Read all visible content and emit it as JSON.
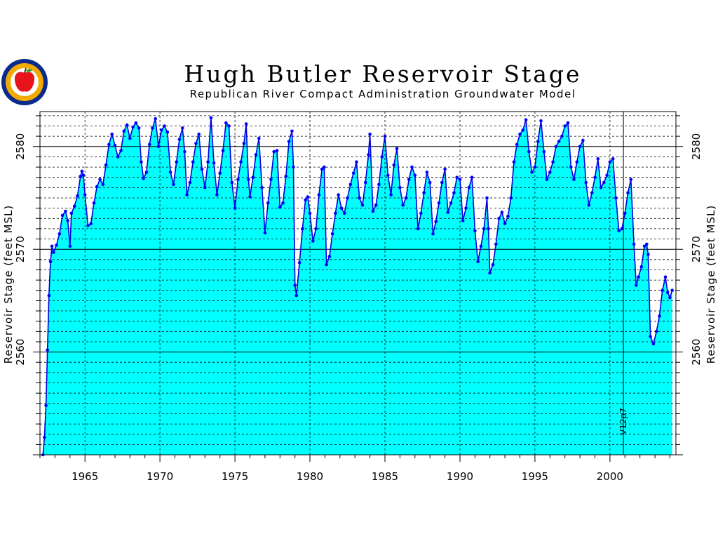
{
  "colors": {
    "fill": "#00ffff",
    "line": "#0000e0",
    "marker": "#0000ff",
    "grid": "#000000",
    "logo_ring": "#0a2a8c",
    "logo_inner": "#f2a900",
    "apple": "#e8141b"
  },
  "logo": {
    "icon": "nebraska-seal-apple-logo"
  },
  "chart_data": {
    "type": "area",
    "title": "Hugh Butler Reservoir Stage",
    "subtitle": "Republican River Compact Administration Groundwater Model",
    "ylabel": "Reservoir Stage (feet MSL)",
    "xlabel": "",
    "xlim": [
      1962.0,
      2004.4
    ],
    "ylim": [
      2550.0,
      2583.4
    ],
    "x_ticks": [
      1965,
      1970,
      1975,
      1980,
      1985,
      1990,
      1995,
      2000
    ],
    "x_tick_labels": [
      "1965",
      "1970",
      "1975",
      "1980",
      "1985",
      "1990",
      "1995",
      "2000"
    ],
    "y_ticks": [
      2560,
      2570,
      2580
    ],
    "y_tick_labels": [
      "2560",
      "2570",
      "2580"
    ],
    "grid": "dashed",
    "annotation": {
      "text": "V12p7",
      "x": 2000.9
    },
    "series": [
      {
        "points": [
          [
            1962.2,
            2550.0
          ],
          [
            1962.3,
            2551.7
          ],
          [
            1962.4,
            2554.8
          ],
          [
            1962.5,
            2560.2
          ],
          [
            1962.6,
            2565.5
          ],
          [
            1962.7,
            2568.8
          ],
          [
            1962.8,
            2570.3
          ],
          [
            1962.9,
            2569.7
          ],
          [
            1963.1,
            2570.4
          ],
          [
            1963.3,
            2571.5
          ],
          [
            1963.5,
            2573.3
          ],
          [
            1963.7,
            2573.7
          ],
          [
            1963.85,
            2572.8
          ],
          [
            1964.0,
            2570.3
          ],
          [
            1964.1,
            2573.5
          ],
          [
            1964.3,
            2574.2
          ],
          [
            1964.5,
            2575.2
          ],
          [
            1964.7,
            2577.1
          ],
          [
            1964.8,
            2577.6
          ],
          [
            1964.9,
            2577.2
          ],
          [
            1965.0,
            2575.3
          ],
          [
            1965.2,
            2572.3
          ],
          [
            1965.4,
            2572.5
          ],
          [
            1965.6,
            2574.5
          ],
          [
            1965.8,
            2576.1
          ],
          [
            1966.0,
            2576.8
          ],
          [
            1966.2,
            2576.3
          ],
          [
            1966.4,
            2578.2
          ],
          [
            1966.6,
            2580.2
          ],
          [
            1966.8,
            2581.2
          ],
          [
            1967.0,
            2580.1
          ],
          [
            1967.2,
            2579.0
          ],
          [
            1967.4,
            2579.6
          ],
          [
            1967.6,
            2581.5
          ],
          [
            1967.8,
            2582.1
          ],
          [
            1968.0,
            2580.8
          ],
          [
            1968.2,
            2581.9
          ],
          [
            1968.4,
            2582.3
          ],
          [
            1968.6,
            2581.8
          ],
          [
            1968.75,
            2578.5
          ],
          [
            1968.9,
            2576.9
          ],
          [
            1969.1,
            2577.5
          ],
          [
            1969.3,
            2580.2
          ],
          [
            1969.5,
            2581.8
          ],
          [
            1969.7,
            2582.7
          ],
          [
            1969.9,
            2580.0
          ],
          [
            1970.1,
            2581.6
          ],
          [
            1970.3,
            2582.0
          ],
          [
            1970.5,
            2581.4
          ],
          [
            1970.7,
            2577.5
          ],
          [
            1970.9,
            2576.3
          ],
          [
            1971.1,
            2578.5
          ],
          [
            1971.3,
            2580.7
          ],
          [
            1971.5,
            2581.8
          ],
          [
            1971.65,
            2579.5
          ],
          [
            1971.8,
            2575.3
          ],
          [
            1972.0,
            2576.5
          ],
          [
            1972.2,
            2578.5
          ],
          [
            1972.4,
            2580.3
          ],
          [
            1972.6,
            2581.2
          ],
          [
            1972.8,
            2577.8
          ],
          [
            1973.0,
            2576.0
          ],
          [
            1973.2,
            2578.5
          ],
          [
            1973.4,
            2582.8
          ],
          [
            1973.6,
            2578.4
          ],
          [
            1973.8,
            2575.3
          ],
          [
            1974.0,
            2577.4
          ],
          [
            1974.2,
            2579.6
          ],
          [
            1974.4,
            2582.3
          ],
          [
            1974.6,
            2582.0
          ],
          [
            1974.8,
            2576.5
          ],
          [
            1975.0,
            2574.0
          ],
          [
            1975.2,
            2576.8
          ],
          [
            1975.4,
            2578.5
          ],
          [
            1975.6,
            2580.3
          ],
          [
            1975.75,
            2582.2
          ],
          [
            1975.9,
            2576.8
          ],
          [
            1976.0,
            2575.1
          ],
          [
            1976.2,
            2577.0
          ],
          [
            1976.4,
            2579.2
          ],
          [
            1976.6,
            2580.8
          ],
          [
            1976.8,
            2576.0
          ],
          [
            1977.0,
            2571.6
          ],
          [
            1977.2,
            2574.5
          ],
          [
            1977.4,
            2576.8
          ],
          [
            1977.6,
            2579.5
          ],
          [
            1977.8,
            2579.6
          ],
          [
            1978.0,
            2574.1
          ],
          [
            1978.2,
            2574.5
          ],
          [
            1978.4,
            2577.1
          ],
          [
            1978.6,
            2580.5
          ],
          [
            1978.8,
            2581.5
          ],
          [
            1978.9,
            2578.0
          ],
          [
            1979.0,
            2566.5
          ],
          [
            1979.1,
            2565.5
          ],
          [
            1979.3,
            2568.7
          ],
          [
            1979.5,
            2572.0
          ],
          [
            1979.7,
            2574.8
          ],
          [
            1979.85,
            2575.1
          ],
          [
            1980.0,
            2573.5
          ],
          [
            1980.2,
            2570.8
          ],
          [
            1980.4,
            2572.0
          ],
          [
            1980.6,
            2575.3
          ],
          [
            1980.8,
            2577.8
          ],
          [
            1980.95,
            2578.0
          ],
          [
            1981.1,
            2568.5
          ],
          [
            1981.3,
            2569.3
          ],
          [
            1981.5,
            2571.5
          ],
          [
            1981.7,
            2573.5
          ],
          [
            1981.9,
            2575.3
          ],
          [
            1982.1,
            2574.0
          ],
          [
            1982.3,
            2573.5
          ],
          [
            1982.5,
            2575.0
          ],
          [
            1982.7,
            2576.3
          ],
          [
            1982.9,
            2577.4
          ],
          [
            1983.1,
            2578.5
          ],
          [
            1983.3,
            2575.0
          ],
          [
            1983.5,
            2574.3
          ],
          [
            1983.7,
            2576.5
          ],
          [
            1983.9,
            2579.2
          ],
          [
            1984.0,
            2581.2
          ],
          [
            1984.2,
            2573.7
          ],
          [
            1984.4,
            2574.3
          ],
          [
            1984.6,
            2576.3
          ],
          [
            1984.8,
            2579.0
          ],
          [
            1985.0,
            2581.0
          ],
          [
            1985.2,
            2577.2
          ],
          [
            1985.4,
            2575.3
          ],
          [
            1985.6,
            2578.2
          ],
          [
            1985.8,
            2579.8
          ],
          [
            1986.0,
            2576.0
          ],
          [
            1986.2,
            2574.3
          ],
          [
            1986.4,
            2575.0
          ],
          [
            1986.6,
            2576.8
          ],
          [
            1986.8,
            2578.0
          ],
          [
            1987.0,
            2577.2
          ],
          [
            1987.2,
            2572.0
          ],
          [
            1987.4,
            2573.5
          ],
          [
            1987.6,
            2575.5
          ],
          [
            1987.8,
            2577.5
          ],
          [
            1988.0,
            2576.5
          ],
          [
            1988.2,
            2571.5
          ],
          [
            1988.4,
            2572.7
          ],
          [
            1988.6,
            2574.5
          ],
          [
            1988.8,
            2576.5
          ],
          [
            1989.0,
            2577.8
          ],
          [
            1989.2,
            2573.6
          ],
          [
            1989.4,
            2574.5
          ],
          [
            1989.6,
            2575.5
          ],
          [
            1989.8,
            2577.0
          ],
          [
            1990.0,
            2576.8
          ],
          [
            1990.2,
            2572.8
          ],
          [
            1990.4,
            2574.0
          ],
          [
            1990.6,
            2576.0
          ],
          [
            1990.8,
            2577.0
          ],
          [
            1991.0,
            2571.8
          ],
          [
            1991.2,
            2568.8
          ],
          [
            1991.4,
            2570.3
          ],
          [
            1991.6,
            2572.0
          ],
          [
            1991.8,
            2575.0
          ],
          [
            1991.9,
            2572.0
          ],
          [
            1992.0,
            2567.7
          ],
          [
            1992.2,
            2568.5
          ],
          [
            1992.4,
            2570.5
          ],
          [
            1992.6,
            2573.0
          ],
          [
            1992.8,
            2573.6
          ],
          [
            1993.0,
            2572.5
          ],
          [
            1993.2,
            2573.2
          ],
          [
            1993.4,
            2575.0
          ],
          [
            1993.6,
            2578.5
          ],
          [
            1993.8,
            2580.2
          ],
          [
            1994.0,
            2581.2
          ],
          [
            1994.2,
            2581.6
          ],
          [
            1994.4,
            2582.6
          ],
          [
            1994.6,
            2579.5
          ],
          [
            1994.8,
            2577.5
          ],
          [
            1995.0,
            2578.0
          ],
          [
            1995.2,
            2580.5
          ],
          [
            1995.4,
            2582.5
          ],
          [
            1995.6,
            2579.5
          ],
          [
            1995.8,
            2576.8
          ],
          [
            1996.0,
            2577.5
          ],
          [
            1996.2,
            2578.5
          ],
          [
            1996.4,
            2580.0
          ],
          [
            1996.6,
            2580.5
          ],
          [
            1996.8,
            2581.0
          ],
          [
            1997.0,
            2582.0
          ],
          [
            1997.2,
            2582.3
          ],
          [
            1997.4,
            2578.0
          ],
          [
            1997.6,
            2576.8
          ],
          [
            1997.8,
            2578.5
          ],
          [
            1998.0,
            2580.0
          ],
          [
            1998.2,
            2580.6
          ],
          [
            1998.4,
            2576.5
          ],
          [
            1998.6,
            2574.3
          ],
          [
            1998.8,
            2575.5
          ],
          [
            1999.0,
            2577.0
          ],
          [
            1999.2,
            2578.8
          ],
          [
            1999.4,
            2576.0
          ],
          [
            1999.6,
            2576.5
          ],
          [
            1999.8,
            2577.2
          ],
          [
            2000.0,
            2578.5
          ],
          [
            2000.2,
            2578.8
          ],
          [
            2000.4,
            2575.0
          ],
          [
            2000.6,
            2571.8
          ],
          [
            2000.8,
            2572.0
          ],
          [
            2001.0,
            2573.5
          ],
          [
            2001.2,
            2575.5
          ],
          [
            2001.4,
            2576.8
          ],
          [
            2001.6,
            2570.5
          ],
          [
            2001.75,
            2566.5
          ],
          [
            2001.9,
            2567.3
          ],
          [
            2002.1,
            2568.3
          ],
          [
            2002.3,
            2570.3
          ],
          [
            2002.45,
            2570.5
          ],
          [
            2002.55,
            2569.5
          ],
          [
            2002.7,
            2561.5
          ],
          [
            2002.9,
            2560.8
          ],
          [
            2003.1,
            2562.0
          ],
          [
            2003.3,
            2563.5
          ],
          [
            2003.5,
            2566.0
          ],
          [
            2003.7,
            2567.3
          ],
          [
            2003.85,
            2565.8
          ],
          [
            2004.0,
            2565.3
          ],
          [
            2004.15,
            2566.0
          ]
        ]
      }
    ]
  }
}
